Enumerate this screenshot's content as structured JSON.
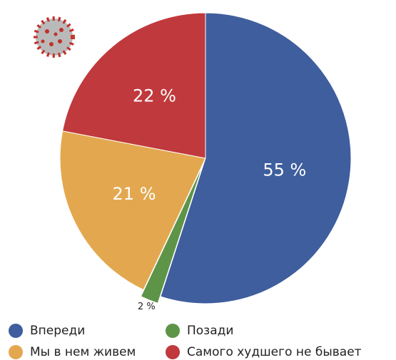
{
  "chart_data": {
    "type": "pie",
    "categories": [
      "Впереди",
      "Позади",
      "Мы в нем живем",
      "Самого худшего не бывает"
    ],
    "values": [
      55,
      2,
      21,
      22
    ],
    "value_labels": [
      "55 %",
      "2 %",
      "21 %",
      "22 %"
    ],
    "colors": [
      "#3f5e9e",
      "#5e9448",
      "#e3a84f",
      "#c0393c"
    ],
    "start_angle": "top",
    "direction": "clockwise"
  }
}
